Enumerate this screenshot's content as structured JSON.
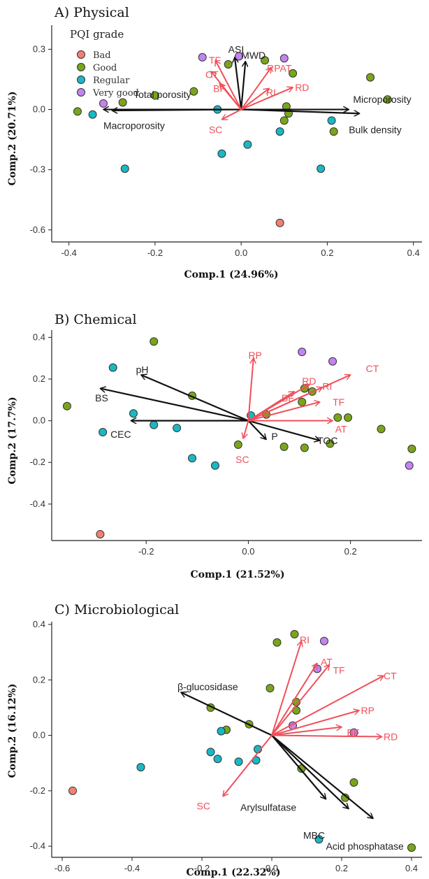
{
  "legend": {
    "title": "PQI grade",
    "items": [
      {
        "label": "Bad",
        "color": "#f28072"
      },
      {
        "label": "Good",
        "color": "#7aa51a"
      },
      {
        "label": "Regular",
        "color": "#19b8c4"
      },
      {
        "label": "Very good",
        "color": "#c383f0"
      }
    ]
  },
  "colors": {
    "black_vector": "#111111",
    "red_vector": "#f0505a"
  },
  "chart_data": [
    {
      "type": "scatter",
      "title": "A) Physical",
      "xlabel": "Comp.1 (24.96%)",
      "ylabel": "Comp.2 (20.71%)",
      "xlim": [
        -0.44,
        0.42
      ],
      "ylim": [
        -0.66,
        0.42
      ],
      "xticks": [
        -0.4,
        -0.2,
        0.0,
        0.2,
        0.4
      ],
      "yticks": [
        -0.6,
        -0.3,
        0.0,
        0.3
      ],
      "tick_labels_x": [
        "-0.4",
        "-0.2",
        "0.0",
        "0.2",
        "0.4"
      ],
      "tick_labels_y": [
        "-0.6",
        "-0.3",
        "0.0",
        "0.3"
      ],
      "grid": false,
      "legend_position": "top-left",
      "points": [
        {
          "x": 0.09,
          "y": -0.565,
          "group": "Bad"
        },
        {
          "x": -0.38,
          "y": -0.01,
          "group": "Good"
        },
        {
          "x": -0.275,
          "y": 0.035,
          "group": "Good"
        },
        {
          "x": -0.2,
          "y": 0.07,
          "group": "Good"
        },
        {
          "x": -0.11,
          "y": 0.09,
          "group": "Good"
        },
        {
          "x": -0.03,
          "y": 0.225,
          "group": "Good"
        },
        {
          "x": 0.055,
          "y": 0.245,
          "group": "Good"
        },
        {
          "x": 0.12,
          "y": 0.18,
          "group": "Good"
        },
        {
          "x": 0.105,
          "y": 0.015,
          "group": "Good"
        },
        {
          "x": 0.11,
          "y": -0.02,
          "group": "Good"
        },
        {
          "x": 0.1,
          "y": -0.055,
          "group": "Good"
        },
        {
          "x": 0.215,
          "y": -0.11,
          "group": "Good"
        },
        {
          "x": 0.3,
          "y": 0.16,
          "group": "Good"
        },
        {
          "x": 0.34,
          "y": 0.05,
          "group": "Good"
        },
        {
          "x": -0.27,
          "y": -0.295,
          "group": "Regular"
        },
        {
          "x": -0.345,
          "y": -0.025,
          "group": "Regular"
        },
        {
          "x": -0.055,
          "y": 0.0,
          "group": "Regular"
        },
        {
          "x": -0.045,
          "y": -0.22,
          "group": "Regular"
        },
        {
          "x": 0.015,
          "y": -0.175,
          "group": "Regular"
        },
        {
          "x": 0.09,
          "y": -0.11,
          "group": "Regular"
        },
        {
          "x": 0.21,
          "y": -0.055,
          "group": "Regular"
        },
        {
          "x": 0.185,
          "y": -0.295,
          "group": "Regular"
        },
        {
          "x": -0.32,
          "y": 0.03,
          "group": "Very good"
        },
        {
          "x": -0.09,
          "y": 0.26,
          "group": "Very good"
        },
        {
          "x": -0.005,
          "y": 0.265,
          "group": "Very good"
        },
        {
          "x": 0.1,
          "y": 0.255,
          "group": "Very good"
        }
      ],
      "vectors": [
        {
          "label": "Total porosity",
          "x": -0.32,
          "y": 0.0,
          "color": "black",
          "lx": -0.25,
          "ly": 0.075
        },
        {
          "label": "Macroporosity",
          "x": -0.3,
          "y": -0.005,
          "color": "black",
          "lx": -0.32,
          "ly": -0.08
        },
        {
          "label": "Microporosity",
          "x": 0.275,
          "y": -0.02,
          "color": "black",
          "lx": 0.26,
          "ly": 0.05
        },
        {
          "label": "Bulk density",
          "x": 0.25,
          "y": 0.0,
          "color": "black",
          "lx": 0.25,
          "ly": -0.1
        },
        {
          "label": "ASI",
          "x": -0.015,
          "y": 0.26,
          "color": "black",
          "lx": -0.03,
          "ly": 0.3
        },
        {
          "label": "MWD",
          "x": 0.01,
          "y": 0.24,
          "color": "black",
          "lx": 0.0,
          "ly": 0.27
        },
        {
          "label": "TF",
          "x": -0.06,
          "y": 0.245,
          "color": "red",
          "lx": -0.075,
          "ly": 0.245
        },
        {
          "label": "CT",
          "x": -0.07,
          "y": 0.19,
          "color": "red",
          "lx": -0.083,
          "ly": 0.175
        },
        {
          "label": "BF",
          "x": -0.05,
          "y": 0.13,
          "color": "red",
          "lx": -0.065,
          "ly": 0.105
        },
        {
          "label": "RPAT",
          "x": 0.07,
          "y": 0.21,
          "color": "red",
          "lx": 0.06,
          "ly": 0.205
        },
        {
          "label": "RD",
          "x": 0.12,
          "y": 0.11,
          "color": "red",
          "lx": 0.125,
          "ly": 0.11
        },
        {
          "label": "RI",
          "x": 0.065,
          "y": 0.105,
          "color": "red",
          "lx": 0.058,
          "ly": 0.085
        },
        {
          "label": "SC",
          "x": -0.045,
          "y": -0.05,
          "color": "red",
          "lx": -0.075,
          "ly": -0.1
        }
      ]
    },
    {
      "type": "scatter",
      "title": "B) Chemical",
      "xlabel": "Comp.1 (21.52%)",
      "ylabel": "Comp.2 (17.7%)",
      "xlim": [
        -0.385,
        0.34
      ],
      "ylim": [
        -0.575,
        0.435
      ],
      "xticks": [
        -0.2,
        0.0,
        0.2
      ],
      "yticks": [
        -0.4,
        -0.2,
        0.0,
        0.2,
        0.4
      ],
      "tick_labels_x": [
        "-0.2",
        "0.0",
        "0.2"
      ],
      "tick_labels_y": [
        "-0.4",
        "-0.2",
        "0.0",
        "0.2",
        "0.4"
      ],
      "grid": false,
      "points": [
        {
          "x": -0.29,
          "y": -0.545,
          "group": "Bad"
        },
        {
          "x": -0.355,
          "y": 0.07,
          "group": "Good"
        },
        {
          "x": -0.185,
          "y": 0.38,
          "group": "Good"
        },
        {
          "x": -0.11,
          "y": 0.12,
          "group": "Good"
        },
        {
          "x": -0.02,
          "y": -0.115,
          "group": "Good"
        },
        {
          "x": 0.035,
          "y": 0.03,
          "group": "Good"
        },
        {
          "x": 0.07,
          "y": -0.125,
          "group": "Good"
        },
        {
          "x": 0.105,
          "y": 0.09,
          "group": "Good"
        },
        {
          "x": 0.11,
          "y": -0.13,
          "group": "Good"
        },
        {
          "x": 0.11,
          "y": 0.155,
          "group": "Good"
        },
        {
          "x": 0.125,
          "y": 0.14,
          "group": "Good"
        },
        {
          "x": 0.16,
          "y": -0.11,
          "group": "Good"
        },
        {
          "x": 0.175,
          "y": 0.015,
          "group": "Good"
        },
        {
          "x": 0.195,
          "y": 0.015,
          "group": "Good"
        },
        {
          "x": 0.26,
          "y": -0.04,
          "group": "Good"
        },
        {
          "x": 0.32,
          "y": -0.135,
          "group": "Good"
        },
        {
          "x": -0.265,
          "y": 0.255,
          "group": "Regular"
        },
        {
          "x": -0.225,
          "y": 0.035,
          "group": "Regular"
        },
        {
          "x": -0.285,
          "y": -0.055,
          "group": "Regular"
        },
        {
          "x": -0.185,
          "y": -0.02,
          "group": "Regular"
        },
        {
          "x": -0.14,
          "y": -0.035,
          "group": "Regular"
        },
        {
          "x": -0.11,
          "y": -0.18,
          "group": "Regular"
        },
        {
          "x": -0.065,
          "y": -0.215,
          "group": "Regular"
        },
        {
          "x": 0.005,
          "y": 0.025,
          "group": "Regular"
        },
        {
          "x": 0.105,
          "y": 0.33,
          "group": "Very good"
        },
        {
          "x": 0.165,
          "y": 0.285,
          "group": "Very good"
        },
        {
          "x": 0.315,
          "y": -0.215,
          "group": "Very good"
        }
      ],
      "vectors": [
        {
          "label": "pH",
          "x": -0.21,
          "y": 0.22,
          "color": "black",
          "lx": -0.22,
          "ly": 0.245
        },
        {
          "label": "BS",
          "x": -0.29,
          "y": 0.155,
          "color": "black",
          "lx": -0.3,
          "ly": 0.11
        },
        {
          "label": "CEC",
          "x": -0.23,
          "y": 0.0,
          "color": "black",
          "lx": -0.27,
          "ly": -0.065
        },
        {
          "label": "P",
          "x": 0.035,
          "y": -0.09,
          "color": "black",
          "lx": 0.045,
          "ly": -0.075
        },
        {
          "label": "TOC",
          "x": 0.14,
          "y": -0.095,
          "color": "black",
          "lx": 0.135,
          "ly": -0.095
        },
        {
          "label": "RP",
          "x": 0.01,
          "y": 0.3,
          "color": "red",
          "lx": 0.0,
          "ly": 0.315
        },
        {
          "label": "RD",
          "x": 0.12,
          "y": 0.175,
          "color": "red",
          "lx": 0.105,
          "ly": 0.19
        },
        {
          "label": "RI",
          "x": 0.145,
          "y": 0.16,
          "color": "red",
          "lx": 0.145,
          "ly": 0.165
        },
        {
          "label": "CT",
          "x": 0.2,
          "y": 0.22,
          "color": "red",
          "lx": 0.23,
          "ly": 0.25
        },
        {
          "label": "BF",
          "x": 0.09,
          "y": 0.14,
          "color": "red",
          "lx": 0.065,
          "ly": 0.11
        },
        {
          "label": "TF",
          "x": 0.14,
          "y": 0.09,
          "color": "red",
          "lx": 0.165,
          "ly": 0.09
        },
        {
          "label": "AT",
          "x": 0.165,
          "y": 0.0,
          "color": "red",
          "lx": 0.17,
          "ly": -0.04
        },
        {
          "label": "SC",
          "x": -0.01,
          "y": -0.085,
          "color": "red",
          "lx": -0.025,
          "ly": -0.185
        }
      ]
    },
    {
      "type": "scatter",
      "title": "C) Microbiological",
      "xlabel": "Comp.1 (22.32%)",
      "ylabel": "Comp.2 (16.12%)",
      "xlim": [
        -0.63,
        0.43
      ],
      "ylim": [
        -0.44,
        0.41
      ],
      "xticks": [
        -0.6,
        -0.4,
        -0.2,
        0.0,
        0.2,
        0.4
      ],
      "yticks": [
        -0.4,
        -0.2,
        0.0,
        0.2,
        0.4
      ],
      "tick_labels_x": [
        "-0.6",
        "-0.4",
        "-0.2",
        "0.0",
        "0.2",
        "0.4"
      ],
      "tick_labels_y": [
        "-0.4",
        "-0.2",
        "0.0",
        "0.2",
        "0.4"
      ],
      "grid": false,
      "points": [
        {
          "x": -0.57,
          "y": -0.2,
          "group": "Bad"
        },
        {
          "x": -0.175,
          "y": 0.1,
          "group": "Good"
        },
        {
          "x": -0.13,
          "y": 0.02,
          "group": "Good"
        },
        {
          "x": -0.065,
          "y": 0.04,
          "group": "Good"
        },
        {
          "x": 0.015,
          "y": 0.335,
          "group": "Good"
        },
        {
          "x": 0.065,
          "y": 0.365,
          "group": "Good"
        },
        {
          "x": -0.005,
          "y": 0.17,
          "group": "Good"
        },
        {
          "x": 0.07,
          "y": 0.12,
          "group": "Good"
        },
        {
          "x": 0.07,
          "y": 0.09,
          "group": "Good"
        },
        {
          "x": 0.085,
          "y": -0.12,
          "group": "Good"
        },
        {
          "x": 0.21,
          "y": -0.225,
          "group": "Good"
        },
        {
          "x": 0.235,
          "y": -0.17,
          "group": "Good"
        },
        {
          "x": 0.4,
          "y": -0.405,
          "group": "Good"
        },
        {
          "x": -0.375,
          "y": -0.115,
          "group": "Regular"
        },
        {
          "x": -0.175,
          "y": -0.06,
          "group": "Regular"
        },
        {
          "x": -0.145,
          "y": 0.015,
          "group": "Regular"
        },
        {
          "x": -0.155,
          "y": -0.085,
          "group": "Regular"
        },
        {
          "x": -0.095,
          "y": -0.095,
          "group": "Regular"
        },
        {
          "x": -0.045,
          "y": -0.09,
          "group": "Regular"
        },
        {
          "x": -0.04,
          "y": -0.05,
          "group": "Regular"
        },
        {
          "x": 0.135,
          "y": -0.375,
          "group": "Regular"
        },
        {
          "x": 0.15,
          "y": 0.34,
          "group": "Very good"
        },
        {
          "x": 0.13,
          "y": 0.24,
          "group": "Very good"
        },
        {
          "x": 0.06,
          "y": 0.035,
          "group": "Very good"
        },
        {
          "x": 0.235,
          "y": 0.01,
          "group": "Very good"
        }
      ],
      "vectors": [
        {
          "label": "β-glucosidase",
          "x": -0.26,
          "y": 0.155,
          "color": "black",
          "lx": -0.27,
          "ly": 0.175
        },
        {
          "label": "Arylsulfatase",
          "x": 0.155,
          "y": -0.23,
          "color": "black",
          "lx": -0.09,
          "ly": -0.26
        },
        {
          "label": "MBC",
          "x": 0.22,
          "y": -0.265,
          "color": "black",
          "lx": 0.09,
          "ly": -0.36
        },
        {
          "label": "Acid phosphatase",
          "x": 0.29,
          "y": -0.3,
          "color": "black",
          "lx": 0.155,
          "ly": -0.4
        },
        {
          "label": "RI",
          "x": 0.085,
          "y": 0.34,
          "color": "red",
          "lx": 0.08,
          "ly": 0.345
        },
        {
          "label": "AT",
          "x": 0.13,
          "y": 0.26,
          "color": "red",
          "lx": 0.14,
          "ly": 0.265
        },
        {
          "label": "TF",
          "x": 0.165,
          "y": 0.255,
          "color": "red",
          "lx": 0.175,
          "ly": 0.235
        },
        {
          "label": "CT",
          "x": 0.32,
          "y": 0.215,
          "color": "red",
          "lx": 0.32,
          "ly": 0.215
        },
        {
          "label": "RP",
          "x": 0.25,
          "y": 0.09,
          "color": "red",
          "lx": 0.255,
          "ly": 0.09
        },
        {
          "label": "BF",
          "x": 0.2,
          "y": 0.03,
          "color": "red",
          "lx": 0.215,
          "ly": 0.01
        },
        {
          "label": "RD",
          "x": 0.315,
          "y": -0.005,
          "color": "red",
          "lx": 0.32,
          "ly": -0.005
        },
        {
          "label": "SC",
          "x": -0.14,
          "y": -0.22,
          "color": "red",
          "lx": -0.215,
          "ly": -0.255
        }
      ]
    }
  ]
}
